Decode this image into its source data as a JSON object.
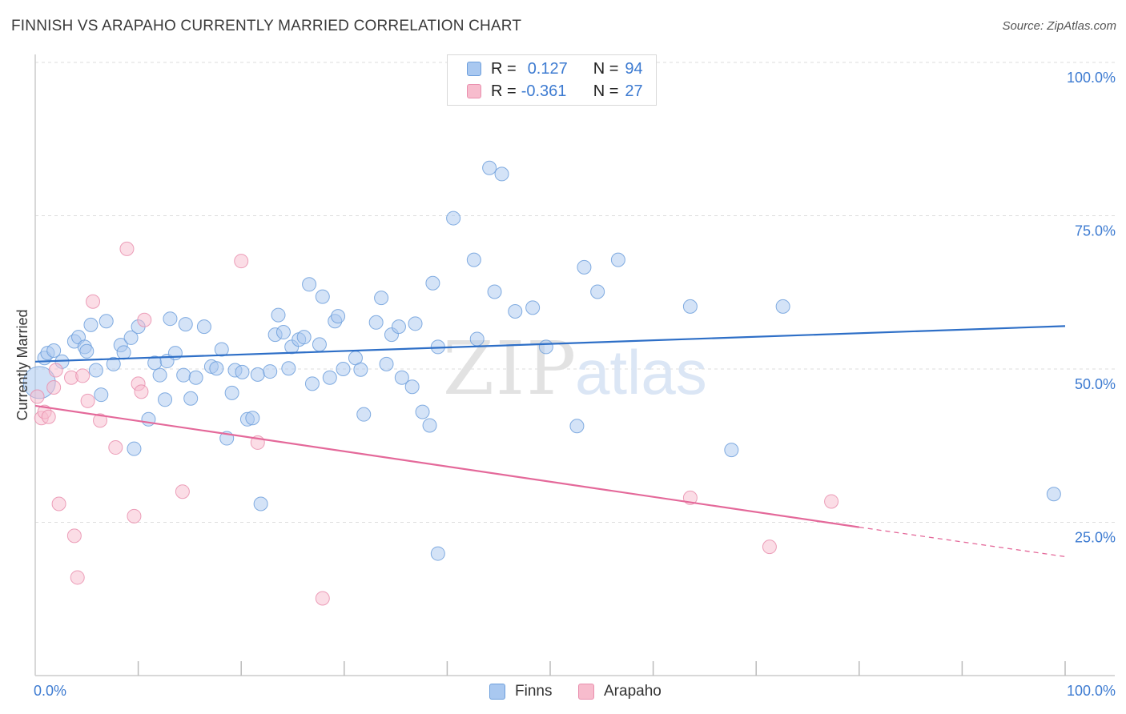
{
  "title": "FINNISH VS ARAPAHO CURRENTLY MARRIED CORRELATION CHART",
  "source": "Source: ZipAtlas.com",
  "watermark": {
    "zip": "ZIP",
    "atlas": "atlas"
  },
  "legend_top": {
    "rows": [
      {
        "r_label": "R =",
        "r_value": "0.127",
        "n_label": "N =",
        "n_value": "94"
      },
      {
        "r_label": "R =",
        "r_value": "-0.361",
        "n_label": "N =",
        "n_value": "27"
      }
    ]
  },
  "legend_bottom": [
    {
      "label": "Finns"
    },
    {
      "label": "Arapaho"
    }
  ],
  "colors": {
    "finns_fill": "#a9c8f0",
    "finns_stroke": "#6d9fdc",
    "finns_line": "#2e6fc7",
    "arapaho_fill": "#f7bccd",
    "arapaho_stroke": "#e98fae",
    "arapaho_line": "#e4699a",
    "tick_label": "#3d7bd1",
    "grid": "#dddddd",
    "axis": "#cccccc"
  },
  "chart_data": {
    "type": "scatter",
    "title": "FINNISH VS ARAPAHO CURRENTLY MARRIED CORRELATION CHART",
    "xlabel": "",
    "ylabel": "Currently Married",
    "xlim": [
      0,
      100
    ],
    "ylim": [
      0,
      100
    ],
    "x_tick_labels": [
      {
        "value": 0,
        "label": "0.0%"
      },
      {
        "value": 100,
        "label": "100.0%"
      }
    ],
    "y_tick_labels": [
      {
        "value": 25,
        "label": "25.0%"
      },
      {
        "value": 50,
        "label": "50.0%"
      },
      {
        "value": 75,
        "label": "75.0%"
      },
      {
        "value": 100,
        "label": "100.0%"
      }
    ],
    "grid": true,
    "legend_position": "top-center",
    "series": [
      {
        "name": "Finns",
        "r": 0.127,
        "n": 94,
        "trend": {
          "x0": 0,
          "y0": 51.2,
          "x1": 100,
          "y1": 57.0
        },
        "points": [
          [
            0.4,
            47.8,
            "big"
          ],
          [
            0.9,
            51.8
          ],
          [
            1.2,
            52.6
          ],
          [
            1.8,
            53.0
          ],
          [
            2.6,
            51.2
          ],
          [
            3.8,
            54.5
          ],
          [
            4.2,
            55.2
          ],
          [
            4.8,
            53.6
          ],
          [
            5.0,
            52.9
          ],
          [
            5.4,
            57.2
          ],
          [
            5.9,
            49.8
          ],
          [
            6.4,
            45.8
          ],
          [
            6.9,
            57.8
          ],
          [
            7.6,
            50.8
          ],
          [
            8.3,
            53.9
          ],
          [
            8.6,
            52.7
          ],
          [
            9.3,
            55.1
          ],
          [
            9.6,
            37.0
          ],
          [
            10.0,
            56.9
          ],
          [
            11.0,
            41.8
          ],
          [
            11.6,
            51.0
          ],
          [
            12.1,
            49.0
          ],
          [
            12.6,
            45.0
          ],
          [
            12.8,
            51.3
          ],
          [
            13.1,
            58.2
          ],
          [
            13.6,
            52.6
          ],
          [
            14.4,
            49.0
          ],
          [
            14.6,
            57.3
          ],
          [
            15.1,
            45.2
          ],
          [
            15.6,
            48.6
          ],
          [
            16.4,
            56.9
          ],
          [
            17.1,
            50.4
          ],
          [
            17.6,
            50.1
          ],
          [
            18.1,
            53.2
          ],
          [
            18.6,
            38.7
          ],
          [
            19.1,
            46.1
          ],
          [
            19.4,
            49.8
          ],
          [
            20.1,
            49.5
          ],
          [
            20.6,
            41.8
          ],
          [
            21.1,
            42.0
          ],
          [
            21.6,
            49.1
          ],
          [
            21.9,
            28.0
          ],
          [
            22.8,
            49.6
          ],
          [
            23.3,
            55.6
          ],
          [
            23.6,
            58.8
          ],
          [
            24.1,
            56.0
          ],
          [
            24.6,
            50.1
          ],
          [
            24.9,
            53.6
          ],
          [
            25.6,
            54.8
          ],
          [
            26.1,
            55.2
          ],
          [
            26.6,
            63.8
          ],
          [
            26.9,
            47.6
          ],
          [
            27.6,
            54.0
          ],
          [
            27.9,
            61.8
          ],
          [
            28.6,
            48.6
          ],
          [
            29.1,
            57.8
          ],
          [
            29.4,
            58.6
          ],
          [
            29.9,
            50.0
          ],
          [
            31.1,
            51.8
          ],
          [
            31.6,
            49.9
          ],
          [
            31.9,
            42.6
          ],
          [
            33.1,
            57.6
          ],
          [
            33.6,
            61.6
          ],
          [
            34.1,
            50.8
          ],
          [
            34.6,
            55.6
          ],
          [
            35.3,
            56.9
          ],
          [
            35.6,
            48.6
          ],
          [
            36.6,
            47.1
          ],
          [
            36.9,
            57.4
          ],
          [
            37.6,
            43.0
          ],
          [
            38.3,
            40.8
          ],
          [
            38.6,
            64.0
          ],
          [
            39.1,
            53.6
          ],
          [
            40.6,
            74.6
          ],
          [
            42.6,
            67.8
          ],
          [
            42.9,
            54.9
          ],
          [
            44.1,
            82.8
          ],
          [
            44.6,
            62.6
          ],
          [
            45.3,
            81.8
          ],
          [
            46.6,
            59.4
          ],
          [
            48.3,
            60.0
          ],
          [
            49.6,
            53.6
          ],
          [
            52.6,
            40.7
          ],
          [
            53.3,
            66.6
          ],
          [
            54.6,
            62.6
          ],
          [
            56.6,
            67.8
          ],
          [
            63.6,
            60.2
          ],
          [
            67.6,
            36.8
          ],
          [
            72.6,
            60.2
          ],
          [
            98.9,
            29.6
          ],
          [
            39.1,
            19.9
          ]
        ]
      },
      {
        "name": "Arapaho",
        "r": -0.361,
        "n": 27,
        "trend": {
          "x0": 0,
          "y0": 44.0,
          "x1": 80,
          "y1": 24.2,
          "dash_to": {
            "x": 100,
            "y": 19.4
          }
        },
        "points": [
          [
            0.2,
            45.5
          ],
          [
            0.6,
            42.0
          ],
          [
            0.9,
            43.0
          ],
          [
            1.3,
            42.2
          ],
          [
            1.8,
            47.0
          ],
          [
            2.0,
            49.8
          ],
          [
            2.3,
            28.0
          ],
          [
            3.5,
            48.6
          ],
          [
            3.8,
            22.8
          ],
          [
            4.1,
            16.0
          ],
          [
            4.6,
            48.9
          ],
          [
            5.1,
            44.8
          ],
          [
            5.6,
            61.0
          ],
          [
            6.3,
            41.6
          ],
          [
            7.8,
            37.2
          ],
          [
            8.9,
            69.6
          ],
          [
            9.6,
            26.0
          ],
          [
            10.0,
            47.6
          ],
          [
            10.3,
            46.3
          ],
          [
            10.6,
            58.0
          ],
          [
            14.3,
            30.0
          ],
          [
            20.0,
            67.6
          ],
          [
            21.6,
            38.0
          ],
          [
            27.9,
            12.6
          ],
          [
            63.6,
            29.0
          ],
          [
            71.3,
            21.0
          ],
          [
            77.3,
            28.4
          ]
        ]
      }
    ]
  }
}
